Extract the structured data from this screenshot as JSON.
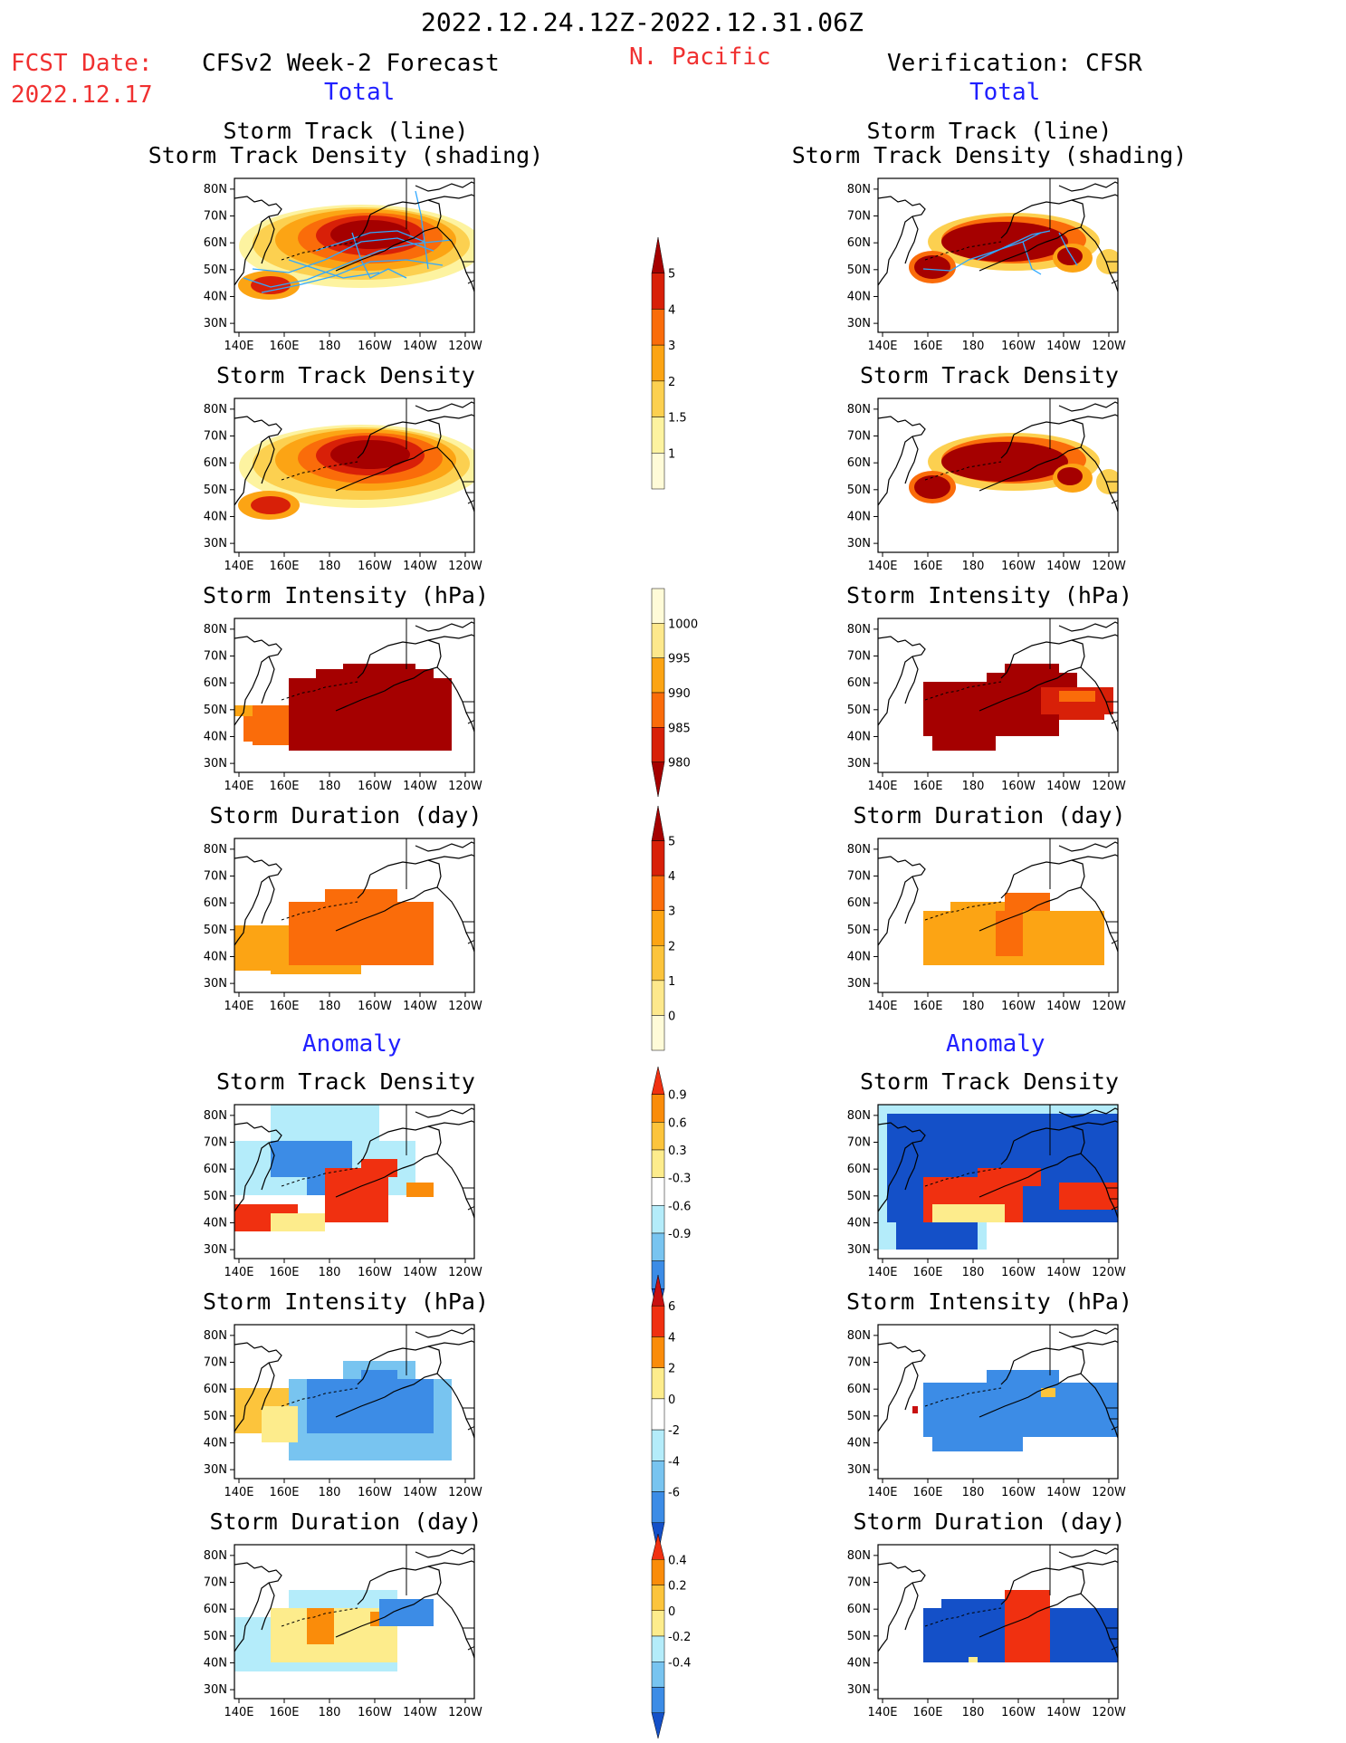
{
  "header": {
    "period": "2022.12.24.12Z-2022.12.31.06Z",
    "fcst_label": "FCST Date:",
    "fcst_date": "2022.12.17",
    "left_title": "CFSv2 Week-2 Forecast",
    "region": "N. Pacific",
    "right_title": "Verification: CFSR",
    "total_label": "Total",
    "anomaly_label": "Anomaly"
  },
  "panel_titles": {
    "track_line": "Storm Track (line)",
    "track_shading": "Storm Track Density (shading)",
    "density": "Storm Track Density",
    "intensity": "Storm Intensity (hPa)",
    "duration": "Storm Duration (day)"
  },
  "axes": {
    "lat_labels": [
      "80N",
      "70N",
      "60N",
      "50N",
      "40N",
      "30N"
    ],
    "lon_labels": [
      "140E",
      "160E",
      "180",
      "160W",
      "140W",
      "120W"
    ]
  },
  "colorbars": {
    "density": {
      "labels": [
        "5",
        "4",
        "3",
        "2",
        "1.5",
        "1"
      ],
      "colors": [
        "#a50000",
        "#d82008",
        "#fa6c0a",
        "#fca414",
        "#fcd050",
        "#fdf3a0",
        "#fffbd8"
      ]
    },
    "intensity": {
      "labels": [
        "1000",
        "995",
        "990",
        "985",
        "980"
      ],
      "colors": [
        "#fffbd8",
        "#fde88c",
        "#fca414",
        "#fa6c0a",
        "#d82008",
        "#a50000"
      ]
    },
    "duration": {
      "labels": [
        "5",
        "4",
        "3",
        "2",
        "1",
        "0"
      ],
      "colors": [
        "#a50000",
        "#d82008",
        "#fa6c0a",
        "#fca414",
        "#fcc43c",
        "#fde88c",
        "#fffbd8"
      ]
    },
    "density_anom": {
      "labels": [
        "0.9",
        "0.6",
        "0.3",
        "-0.3",
        "-0.6",
        "-0.9"
      ],
      "colors": [
        "#f03010",
        "#fa8c0a",
        "#fcc43c",
        "#fdec8c",
        "#ffffff",
        "#b4ecfa",
        "#78c4f0",
        "#3c8ce6",
        "#1450c8"
      ]
    },
    "intensity_anom": {
      "labels": [
        "6",
        "4",
        "2",
        "0",
        "-2",
        "-4",
        "-6"
      ],
      "colors": [
        "#c81010",
        "#f03010",
        "#fa8c0a",
        "#fdec8c",
        "#ffffff",
        "#b4ecfa",
        "#78c4f0",
        "#3c8ce6",
        "#1450c8"
      ]
    },
    "duration_anom": {
      "labels": [
        "0.4",
        "0.2",
        "0",
        "-0.2",
        "-0.4"
      ],
      "colors": [
        "#f03010",
        "#fa8c0a",
        "#fcc43c",
        "#fdec8c",
        "#b4ecfa",
        "#78c4f0",
        "#3c8ce6",
        "#1450c8"
      ]
    }
  },
  "colors": {
    "track_line": "#30a8ff",
    "land_outline": "#000000"
  }
}
